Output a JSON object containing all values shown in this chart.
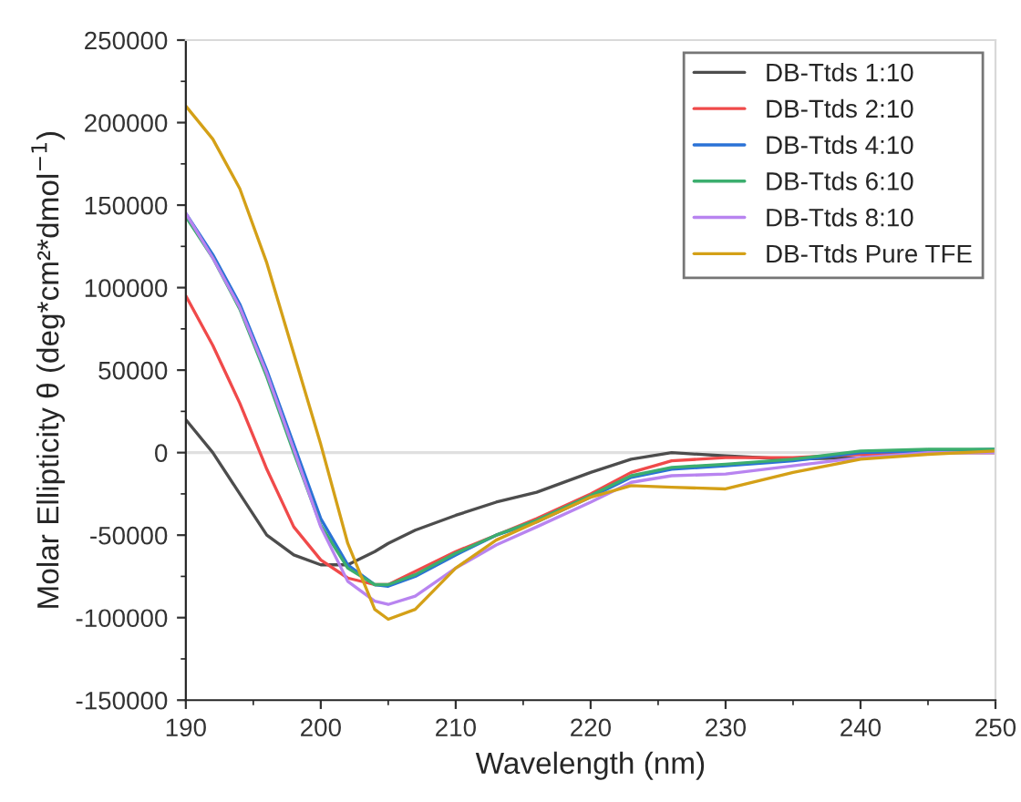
{
  "chart_data": {
    "type": "line",
    "xlabel": "Wavelength (nm)",
    "ylabel": "Molar Ellipticity θ (deg*cm²*dmol$^{−1}$)",
    "x": [
      190,
      192,
      194,
      196,
      198,
      200,
      202,
      204,
      205,
      207,
      210,
      213,
      216,
      220,
      223,
      226,
      230,
      235,
      240,
      245,
      250
    ],
    "series": [
      {
        "name": "DB-Ttds 1:10",
        "color": "#4d4d4d",
        "values": [
          20000,
          0,
          -25000,
          -50000,
          -62000,
          -68000,
          -68000,
          -60000,
          -55000,
          -47000,
          -38000,
          -30000,
          -24000,
          -12000,
          -4000,
          0,
          -2000,
          -4000,
          -3000,
          0,
          0
        ]
      },
      {
        "name": "DB-Ttds 2:10",
        "color": "#f04a4a",
        "values": [
          95000,
          65000,
          30000,
          -10000,
          -45000,
          -65000,
          -76000,
          -80000,
          -80000,
          -72000,
          -60000,
          -50000,
          -40000,
          -25000,
          -12000,
          -5000,
          -3000,
          -3000,
          -1000,
          0,
          0
        ]
      },
      {
        "name": "DB-Ttds 4:10",
        "color": "#2a72d6",
        "values": [
          145000,
          120000,
          90000,
          50000,
          5000,
          -40000,
          -68000,
          -80000,
          -81000,
          -75000,
          -62000,
          -50000,
          -42000,
          -27000,
          -15000,
          -10000,
          -8000,
          -5000,
          0,
          1000,
          2000
        ]
      },
      {
        "name": "DB-Ttds 6:10",
        "color": "#3cae6e",
        "values": [
          143000,
          118000,
          87000,
          46000,
          0,
          -44000,
          -70000,
          -80000,
          -80000,
          -74000,
          -61000,
          -50000,
          -41000,
          -26000,
          -14000,
          -9000,
          -7000,
          -4000,
          1000,
          2000,
          2000
        ]
      },
      {
        "name": "DB-Ttds 8:10",
        "color": "#b884f0",
        "values": [
          145000,
          118000,
          88000,
          48000,
          2000,
          -45000,
          -78000,
          -90000,
          -92000,
          -87000,
          -70000,
          -56000,
          -45000,
          -30000,
          -18000,
          -14000,
          -13000,
          -8000,
          -3000,
          0,
          0
        ]
      },
      {
        "name": "DB-Ttds Pure TFE",
        "color": "#d4a017",
        "values": [
          210000,
          190000,
          160000,
          115000,
          60000,
          5000,
          -55000,
          -95000,
          -101000,
          -95000,
          -70000,
          -53000,
          -42000,
          -27000,
          -20000,
          -21000,
          -22000,
          -12000,
          -4000,
          -1000,
          1000
        ]
      }
    ],
    "xlim": [
      190,
      250
    ],
    "xticks": [
      190,
      200,
      210,
      220,
      230,
      240,
      250
    ],
    "ylim": [
      -150000,
      250000
    ],
    "yticks": [
      {
        "value": -150000,
        "label": "-150000"
      },
      {
        "value": -100000,
        "label": "-100000"
      },
      {
        "value": -50000,
        "label": "-50000"
      },
      0,
      50000,
      100000,
      150000,
      200000,
      250000
    ],
    "ref_lines": [
      {
        "axis": "y",
        "value": 0,
        "color": "#e0e0e0"
      }
    ],
    "legend": "top right",
    "grid": false
  }
}
